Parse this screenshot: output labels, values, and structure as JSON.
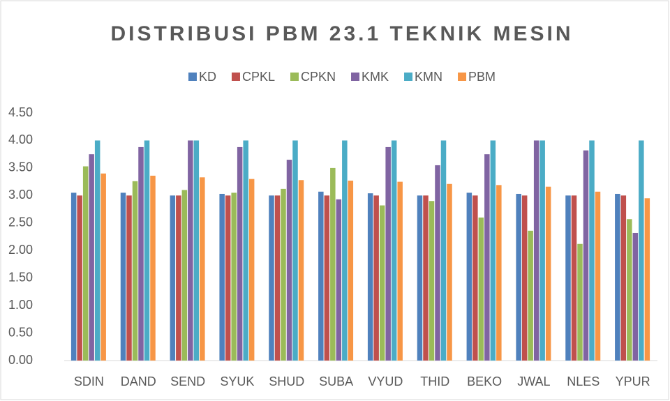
{
  "chart_data": {
    "type": "bar",
    "title": "DISTRIBUSI PBM 23.1 TEKNIK MESIN",
    "categories": [
      "SDIN",
      "DAND",
      "SEND",
      "SYUK",
      "SHUD",
      "SUBA",
      "VYUD",
      "THID",
      "BEKO",
      "JWAL",
      "NLES",
      "YPUR"
    ],
    "series": [
      {
        "name": "KD",
        "color": "#4f81bd",
        "values": [
          3.05,
          3.05,
          3.0,
          3.03,
          3.0,
          3.07,
          3.04,
          3.0,
          3.05,
          3.03,
          3.0,
          3.03
        ]
      },
      {
        "name": "CPKL",
        "color": "#c0504d",
        "values": [
          3.0,
          3.0,
          3.0,
          3.0,
          3.0,
          3.0,
          3.0,
          3.0,
          3.0,
          3.0,
          3.0,
          3.0
        ]
      },
      {
        "name": "CPKN",
        "color": "#9bbb59",
        "values": [
          3.53,
          3.26,
          3.1,
          3.05,
          3.12,
          3.5,
          2.82,
          2.9,
          2.6,
          2.36,
          2.12,
          2.57
        ]
      },
      {
        "name": "KMK",
        "color": "#8064a2",
        "values": [
          3.75,
          3.88,
          4.0,
          3.88,
          3.65,
          2.93,
          3.88,
          3.55,
          3.75,
          4.0,
          3.82,
          2.32
        ]
      },
      {
        "name": "KMN",
        "color": "#4bacc6",
        "values": [
          4.0,
          4.0,
          4.0,
          4.0,
          4.0,
          4.0,
          4.0,
          4.0,
          4.0,
          4.0,
          4.0,
          4.0
        ]
      },
      {
        "name": "PBM",
        "color": "#f79646",
        "values": [
          3.4,
          3.36,
          3.33,
          3.3,
          3.28,
          3.27,
          3.25,
          3.21,
          3.19,
          3.16,
          3.07,
          2.95
        ]
      }
    ],
    "ylim": [
      0,
      4.5
    ],
    "yticks": [
      {
        "value": 0,
        "label": "0.00"
      },
      {
        "value": 0.5,
        "label": "0.50"
      },
      {
        "value": 1,
        "label": "1.00"
      },
      {
        "value": 1.5,
        "label": "1.50"
      },
      {
        "value": 2,
        "label": "2.00"
      },
      {
        "value": 2.5,
        "label": "2.50"
      },
      {
        "value": 3,
        "label": "3.00"
      },
      {
        "value": 3.5,
        "label": "3.50"
      },
      {
        "value": 4,
        "label": "4.00"
      },
      {
        "value": 4.5,
        "label": "4.50"
      }
    ],
    "legend": "top"
  }
}
